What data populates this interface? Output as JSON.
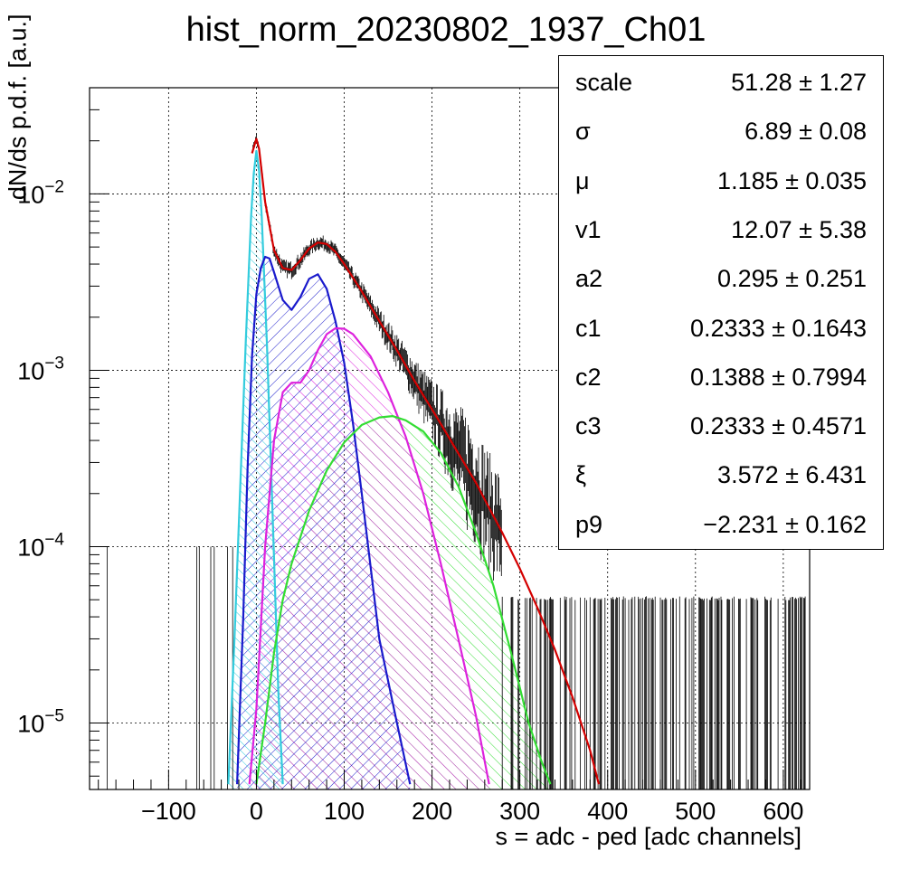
{
  "chart_data": {
    "type": "line",
    "title": "hist_norm_20230802_1937_Ch01",
    "xlabel": "s = adc - ped [adc channels]",
    "ylabel": "dN/ds p.d.f. [a.u.]",
    "xlim": [
      -190,
      630
    ],
    "ylim": [
      4.2e-06,
      0.04
    ],
    "yscale": "log",
    "grid": true,
    "xticks": [
      -100,
      0,
      100,
      200,
      300,
      400,
      500,
      600
    ],
    "yticks": [
      {
        "value": 1e-05,
        "label": "10",
        "exp": "−5"
      },
      {
        "value": 0.0001,
        "label": "10",
        "exp": "−4"
      },
      {
        "value": 0.001,
        "label": "10",
        "exp": "−3"
      },
      {
        "value": 0.01,
        "label": "10",
        "exp": "−2"
      }
    ],
    "colors": {
      "histogram": "#000000",
      "fit": "#d40000",
      "pe0": "#33ccdd",
      "pe1": "#1a1acc",
      "pe2": "#dd22dd",
      "pe3": "#33dd33"
    },
    "series": [
      {
        "key": "fit",
        "x": [
          -5,
          0,
          3,
          10,
          20,
          30,
          40,
          50,
          60,
          70,
          80,
          90,
          100,
          120,
          140,
          160,
          180,
          200,
          220,
          250,
          280,
          300,
          320,
          340,
          360,
          380,
          390
        ],
        "y": [
          0.017,
          0.0205,
          0.018,
          0.009,
          0.0048,
          0.0038,
          0.0037,
          0.0042,
          0.0049,
          0.0053,
          0.0052,
          0.0047,
          0.004,
          0.0028,
          0.0019,
          0.0013,
          0.00087,
          0.0006,
          0.00041,
          0.00023,
          0.00012,
          7.5e-05,
          4.5e-05,
          2.6e-05,
          1.4e-05,
          7e-06,
          4.5e-06
        ]
      },
      {
        "key": "pe0",
        "x": [
          -32,
          -25,
          -18,
          -12,
          -6,
          -3,
          0,
          3,
          6,
          12,
          18,
          25,
          30
        ],
        "y": [
          4.5e-06,
          3e-05,
          0.00025,
          0.0015,
          0.0075,
          0.013,
          0.0175,
          0.0135,
          0.0075,
          0.0014,
          0.00018,
          1.5e-05,
          4.5e-06
        ]
      },
      {
        "key": "pe1",
        "x": [
          -22,
          -15,
          -10,
          -5,
          0,
          5,
          10,
          15,
          20,
          30,
          40,
          50,
          60,
          70,
          80,
          90,
          100,
          110,
          120,
          140,
          160,
          175
        ],
        "y": [
          4.5e-06,
          4e-05,
          0.00028,
          0.0012,
          0.0027,
          0.0038,
          0.0044,
          0.0043,
          0.0036,
          0.0025,
          0.0022,
          0.0026,
          0.0033,
          0.0035,
          0.0029,
          0.0019,
          0.0011,
          0.0005,
          0.0002,
          3e-05,
          1e-05,
          4.5e-06
        ]
      },
      {
        "key": "pe2",
        "x": [
          -8,
          0,
          10,
          20,
          30,
          40,
          50,
          60,
          70,
          80,
          90,
          100,
          110,
          130,
          150,
          170,
          190,
          210,
          230,
          250,
          265
        ],
        "y": [
          4.5e-06,
          1.2e-05,
          0.0001,
          0.0004,
          0.00075,
          0.00085,
          0.00085,
          0.001,
          0.0013,
          0.0016,
          0.00173,
          0.00172,
          0.0016,
          0.0012,
          0.00075,
          0.00042,
          0.0002,
          8e-05,
          3e-05,
          1.1e-05,
          4.5e-06
        ]
      },
      {
        "key": "pe3",
        "x": [
          0,
          10,
          20,
          30,
          40,
          60,
          80,
          100,
          120,
          140,
          155,
          170,
          190,
          210,
          230,
          250,
          270,
          290,
          310,
          325,
          335
        ],
        "y": [
          4.5e-06,
          1e-05,
          2.5e-05,
          5e-05,
          8e-05,
          0.00016,
          0.00027,
          0.00039,
          0.00049,
          0.00054,
          0.00055,
          0.00052,
          0.00045,
          0.00034,
          0.00022,
          0.00012,
          6e-05,
          2.5e-05,
          1e-05,
          6e-06,
          4.5e-06
        ]
      }
    ],
    "histogram": {
      "xmin": -190,
      "xmax": 630,
      "noise_floor": 5e-05,
      "description_free": true
    }
  },
  "stats_box": {
    "rows": [
      {
        "name": "scale",
        "value": "51.28 ± 1.27"
      },
      {
        "name": "σ",
        "value": "6.89 ± 0.08"
      },
      {
        "name": "μ",
        "value": "1.185 ± 0.035"
      },
      {
        "name": "v1",
        "value": "12.07 ± 5.38"
      },
      {
        "name": "a2",
        "value": "0.295 ± 0.251"
      },
      {
        "name": "c1",
        "value": "0.2333 ± 0.1643"
      },
      {
        "name": "c2",
        "value": "0.1388 ± 0.7994"
      },
      {
        "name": "c3",
        "value": "0.2333 ± 0.4571"
      },
      {
        "name": "ξ",
        "value": "3.572 ± 6.431"
      },
      {
        "name": "p9",
        "value": "−2.231 ± 0.162"
      }
    ]
  }
}
